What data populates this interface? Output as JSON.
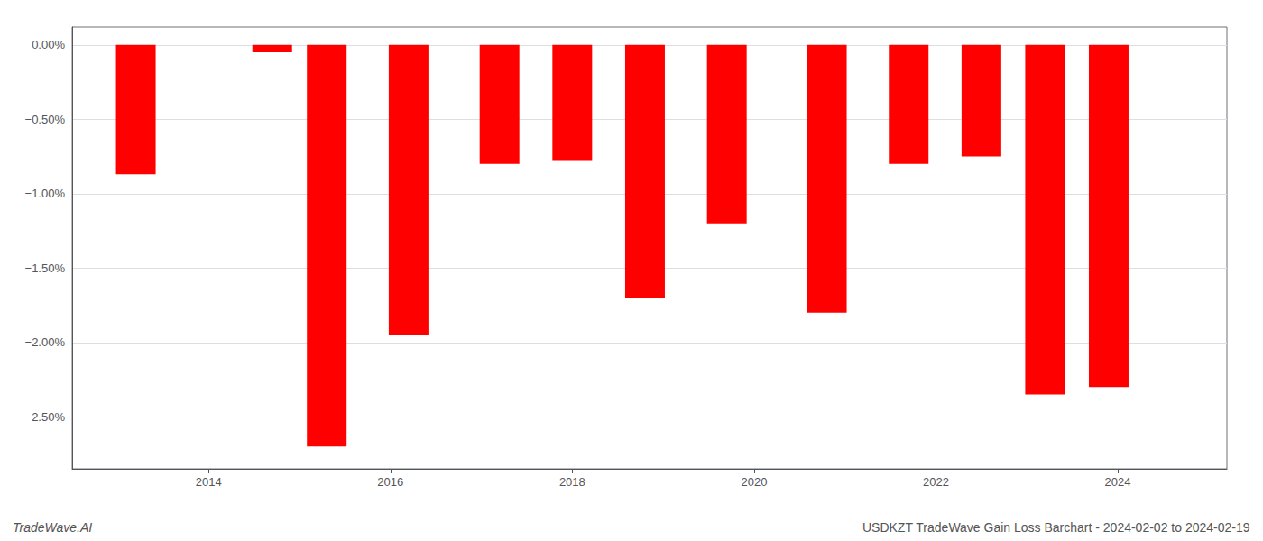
{
  "chart_data": {
    "type": "bar",
    "x": [
      2013.2,
      2014.7,
      2015.3,
      2016.2,
      2017.2,
      2018.0,
      2018.8,
      2019.7,
      2020.8,
      2021.7,
      2022.5,
      2023.2,
      2023.9
    ],
    "values": [
      -0.87,
      -0.05,
      -2.7,
      -1.95,
      -0.8,
      -0.78,
      -1.7,
      -1.2,
      -1.8,
      -0.8,
      -0.75,
      -2.35,
      -2.3
    ],
    "color": "#ff0000",
    "xlim": [
      2012.5,
      2025.2
    ],
    "xticks": [
      2014,
      2016,
      2018,
      2020,
      2022,
      2024
    ],
    "ylim": [
      -2.85,
      0.12
    ],
    "yticks": [
      {
        "value": 0.0,
        "label": "0.00%"
      },
      {
        "value": -0.5,
        "label": "−0.50%"
      },
      {
        "value": -1.0,
        "label": "−1.00%"
      },
      {
        "value": -1.5,
        "label": "−1.50%"
      },
      {
        "value": -2.0,
        "label": "−2.00%"
      },
      {
        "value": -2.5,
        "label": "−2.50%"
      }
    ],
    "grid": true,
    "annotations": [
      "TradeWave.AI",
      "USDKZT TradeWave Gain Loss Barchart - 2024-02-02 to 2024-02-19"
    ]
  }
}
